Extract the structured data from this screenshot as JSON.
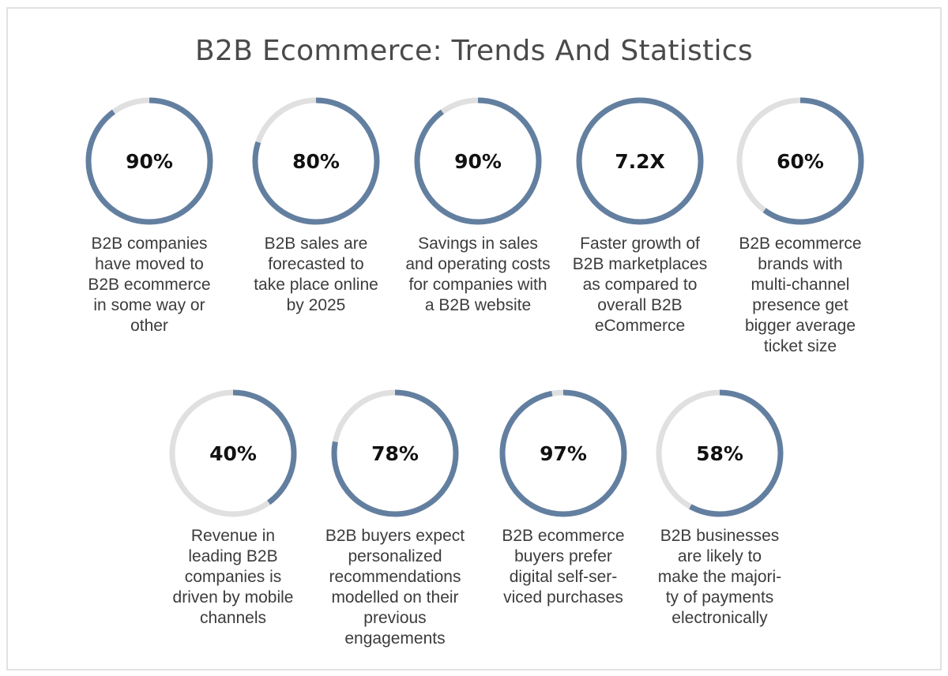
{
  "title": "B2B Ecommerce: Trends And Statistics",
  "colors": {
    "progress": "#637fa0",
    "track": "#e0e0e0"
  },
  "stats": [
    {
      "value": "90%",
      "progress": 0.9,
      "lines": [
        "B2B companies",
        "have moved to",
        "B2B ecommerce",
        "in some way or",
        "other"
      ]
    },
    {
      "value": "80%",
      "progress": 0.8,
      "lines": [
        "B2B sales are",
        "forecasted to",
        "take place online",
        "by 2025"
      ]
    },
    {
      "value": "90%",
      "progress": 0.9,
      "lines": [
        "Savings in sales",
        "and operating costs",
        "for companies with",
        "a B2B website"
      ]
    },
    {
      "value": "7.2X",
      "progress": 1.0,
      "lines": [
        "Faster growth of",
        "B2B marketplaces",
        "as compared to",
        "overall B2B",
        "eCommerce"
      ]
    },
    {
      "value": "60%",
      "progress": 0.6,
      "lines": [
        "B2B ecommerce",
        "brands with",
        "multi-channel",
        "presence get",
        "bigger average",
        "ticket size"
      ]
    },
    {
      "value": "40%",
      "progress": 0.4,
      "lines": [
        "Revenue in",
        "leading B2B",
        "companies is",
        "driven by mobile",
        "channels"
      ]
    },
    {
      "value": "78%",
      "progress": 0.78,
      "lines": [
        "B2B buyers expect",
        "personalized",
        "recommendations",
        "modelled on their",
        "previous",
        "engagements"
      ]
    },
    {
      "value": "97%",
      "progress": 0.97,
      "lines": [
        "B2B ecommerce",
        "buyers prefer",
        "digital self-ser-",
        "viced purchases"
      ]
    },
    {
      "value": "58%",
      "progress": 0.58,
      "lines": [
        "B2B businesses",
        "are likely to",
        "make the majori-",
        "ty of payments",
        "electronically"
      ]
    }
  ]
}
